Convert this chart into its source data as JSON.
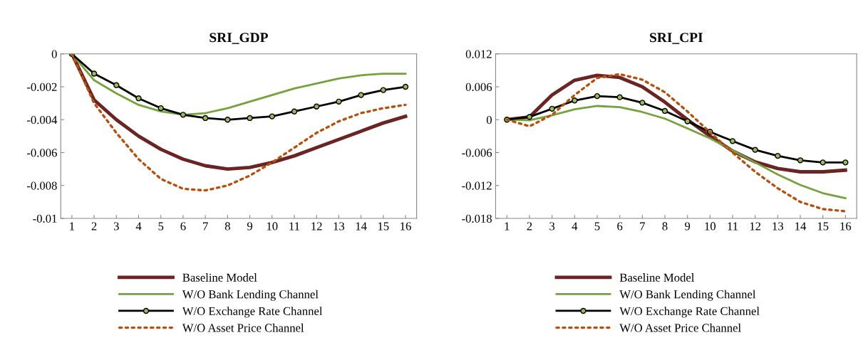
{
  "chart_data": [
    {
      "type": "line",
      "title": "SRI_GDP",
      "categories": [
        "1",
        "2",
        "3",
        "4",
        "5",
        "6",
        "7",
        "8",
        "9",
        "10",
        "11",
        "12",
        "13",
        "14",
        "15",
        "16"
      ],
      "ylim": [
        -0.01,
        0
      ],
      "yticks": [
        {
          "value": -0.01,
          "label": "-0.01"
        },
        {
          "value": -0.008,
          "label": "-0.008"
        },
        {
          "value": -0.006,
          "label": "-0.006"
        },
        {
          "value": -0.004,
          "label": "-0.004"
        },
        {
          "value": -0.002,
          "label": "-0.002"
        },
        {
          "value": 0,
          "label": "0"
        }
      ],
      "grid": false,
      "legend": "bottom",
      "series": [
        {
          "name": "Baseline Model",
          "color": "#6b2424",
          "marker": "none",
          "line_style": "solid",
          "values": [
            0,
            -0.0028,
            -0.004,
            -0.005,
            -0.0058,
            -0.0064,
            -0.0068,
            -0.007,
            -0.0069,
            -0.0066,
            -0.0062,
            -0.0057,
            -0.0052,
            -0.0047,
            -0.0042,
            -0.0038
          ]
        },
        {
          "name": "W/O Bank Lending Channel",
          "color": "#77a13c",
          "marker": "none",
          "line_style": "solid",
          "values": [
            0,
            -0.0016,
            -0.0024,
            -0.0031,
            -0.0035,
            -0.0037,
            -0.0036,
            -0.0033,
            -0.0029,
            -0.0025,
            -0.0021,
            -0.0018,
            -0.0015,
            -0.0013,
            -0.0012,
            -0.0012
          ]
        },
        {
          "name": "W/O Exchange Rate Channel",
          "color": "#000000",
          "marker": "circle",
          "line_style": "solid",
          "values": [
            0,
            -0.0012,
            -0.0019,
            -0.0027,
            -0.0033,
            -0.0037,
            -0.0039,
            -0.004,
            -0.0039,
            -0.0038,
            -0.0035,
            -0.0032,
            -0.0029,
            -0.0025,
            -0.0022,
            -0.002
          ]
        },
        {
          "name": "W/O Asset Price Channel",
          "color": "#b5500f",
          "marker": "none",
          "line_style": "dotted",
          "values": [
            0,
            -0.003,
            -0.0048,
            -0.0064,
            -0.0076,
            -0.0082,
            -0.0083,
            -0.008,
            -0.0074,
            -0.0066,
            -0.0057,
            -0.0048,
            -0.0041,
            -0.0036,
            -0.0033,
            -0.0031
          ]
        }
      ]
    },
    {
      "type": "line",
      "title": "SRI_CPI",
      "categories": [
        "1",
        "2",
        "3",
        "4",
        "5",
        "6",
        "7",
        "8",
        "9",
        "10",
        "11",
        "12",
        "13",
        "14",
        "15",
        "16"
      ],
      "ylim": [
        -0.018,
        0.012
      ],
      "yticks": [
        {
          "value": -0.018,
          "label": "-0.018"
        },
        {
          "value": -0.012,
          "label": "-0.012"
        },
        {
          "value": -0.006,
          "label": "-0.006"
        },
        {
          "value": 0,
          "label": "0"
        },
        {
          "value": 0.006,
          "label": "0.006"
        },
        {
          "value": 0.012,
          "label": "0.012"
        }
      ],
      "grid": false,
      "legend": "bottom",
      "series": [
        {
          "name": "Baseline Model",
          "color": "#6b2424",
          "marker": "none",
          "line_style": "solid",
          "values": [
            0,
            0.0005,
            0.0045,
            0.0072,
            0.0081,
            0.0077,
            0.006,
            0.0032,
            0,
            -0.003,
            -0.0057,
            -0.0077,
            -0.0089,
            -0.0095,
            -0.0095,
            -0.0092
          ]
        },
        {
          "name": "W/O Bank Lending Channel",
          "color": "#77a13c",
          "marker": "none",
          "line_style": "solid",
          "values": [
            0,
            -0.0001,
            0.0008,
            0.0019,
            0.0025,
            0.0023,
            0.0014,
            0.0002,
            -0.0016,
            -0.0034,
            -0.0056,
            -0.0078,
            -0.01,
            -0.0119,
            -0.0134,
            -0.0143
          ]
        },
        {
          "name": "W/O Exchange Rate Channel",
          "color": "#000000",
          "marker": "circle",
          "line_style": "solid",
          "values": [
            0,
            0.0005,
            0.002,
            0.0035,
            0.0043,
            0.0041,
            0.0031,
            0.0016,
            -0.0003,
            -0.0022,
            -0.0039,
            -0.0055,
            -0.0066,
            -0.0074,
            -0.0078,
            -0.0078
          ]
        },
        {
          "name": "W/O Asset Price Channel",
          "color": "#b5500f",
          "marker": "none",
          "line_style": "dotted",
          "values": [
            0,
            -0.0012,
            0.0009,
            0.0045,
            0.0076,
            0.0083,
            0.0073,
            0.005,
            0.0015,
            -0.0023,
            -0.006,
            -0.0095,
            -0.0125,
            -0.015,
            -0.0163,
            -0.0167
          ]
        }
      ]
    }
  ]
}
